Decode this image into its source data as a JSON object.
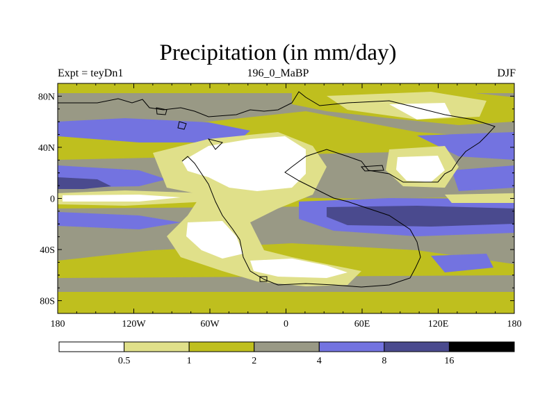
{
  "title": "Precipitation (in mm/day)",
  "subtitle_left": "Expt = teyDn1",
  "subtitle_center": "196_0_MaBP",
  "subtitle_right": "DJF",
  "lat_ticks": [
    {
      "lat": 80,
      "label": "80N"
    },
    {
      "lat": 40,
      "label": "40N"
    },
    {
      "lat": 0,
      "label": "0"
    },
    {
      "lat": -40,
      "label": "40S"
    },
    {
      "lat": -80,
      "label": "80S"
    }
  ],
  "lon_ticks": [
    {
      "lon": -180,
      "label": "180"
    },
    {
      "lon": -120,
      "label": "120W"
    },
    {
      "lon": -60,
      "label": "60W"
    },
    {
      "lon": 0,
      "label": "0"
    },
    {
      "lon": 60,
      "label": "60E"
    },
    {
      "lon": 120,
      "label": "120E"
    },
    {
      "lon": 180,
      "label": "180"
    }
  ],
  "legend": {
    "levels": [
      "0.5",
      "1",
      "2",
      "4",
      "8",
      "16"
    ],
    "colors": [
      "#ffffff",
      "#e0e08a",
      "#bfbf1e",
      "#999985",
      "#7373e0",
      "#4a4a8e",
      "#000000"
    ]
  }
}
